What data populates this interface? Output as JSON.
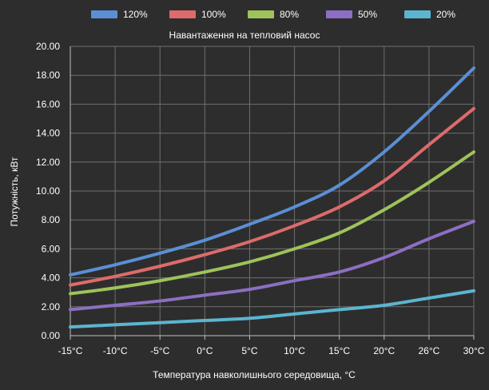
{
  "chart_data": {
    "type": "line",
    "title": "Навантаження на тепловий насос",
    "xlabel": "Температура навколишнього середовища, °C",
    "ylabel": "Потужність, кВт",
    "categories": [
      "-15°C",
      "-10°C",
      "-5°C",
      "0°C",
      "5°C",
      "10°C",
      "15°C",
      "20°C",
      "26°C",
      "30°C"
    ],
    "y_ticks": [
      "0.00",
      "2.00",
      "4.00",
      "6.00",
      "8.00",
      "10.00",
      "12.00",
      "14.00",
      "16.00",
      "18.00",
      "20.00"
    ],
    "ylim": [
      0,
      20
    ],
    "grid": true,
    "legend_position": "top",
    "series": [
      {
        "name": "120%",
        "color": "#5b8fd4",
        "values": [
          4.2,
          4.9,
          5.7,
          6.6,
          7.7,
          8.9,
          10.4,
          12.7,
          15.5,
          18.5
        ]
      },
      {
        "name": "100%",
        "color": "#dd6b6b",
        "values": [
          3.5,
          4.1,
          4.8,
          5.6,
          6.5,
          7.6,
          8.9,
          10.7,
          13.2,
          15.7
        ]
      },
      {
        "name": "80%",
        "color": "#9dc35a",
        "values": [
          2.9,
          3.3,
          3.8,
          4.4,
          5.1,
          6.0,
          7.1,
          8.7,
          10.6,
          12.7
        ]
      },
      {
        "name": "50%",
        "color": "#8c6fc2",
        "values": [
          1.8,
          2.1,
          2.4,
          2.8,
          3.2,
          3.8,
          4.4,
          5.4,
          6.7,
          7.9
        ]
      },
      {
        "name": "20%",
        "color": "#5bb5d1",
        "values": [
          0.6,
          0.75,
          0.9,
          1.05,
          1.2,
          1.5,
          1.8,
          2.1,
          2.6,
          3.1
        ]
      }
    ]
  }
}
